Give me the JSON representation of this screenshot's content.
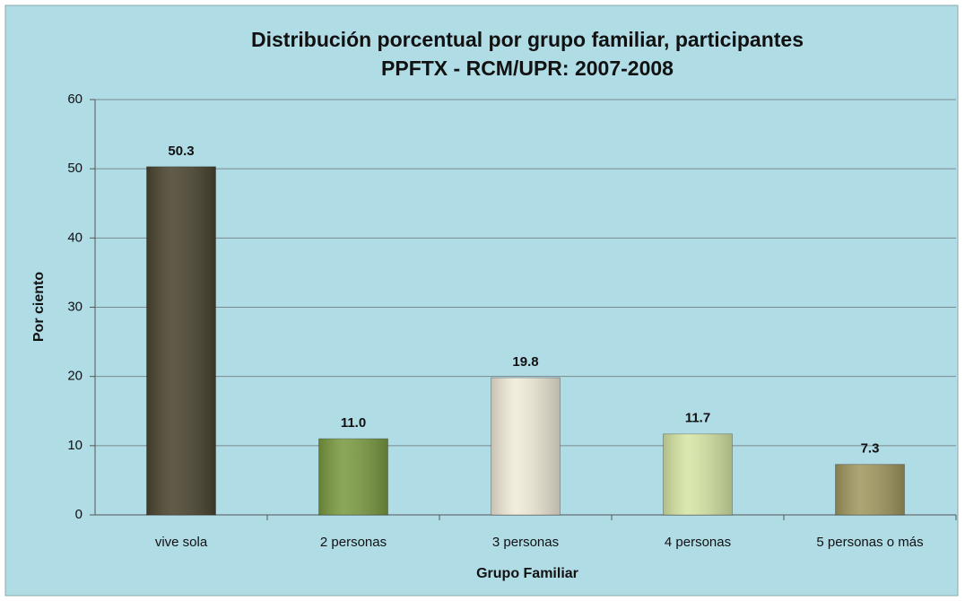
{
  "chart_data": {
    "type": "bar",
    "title": "Distribución porcentual por grupo familiar, participantes",
    "subtitle": "PPFTX - RCM/UPR: 2007-2008",
    "x_label": "Grupo Familiar",
    "y_label": "Por ciento",
    "categories": [
      "vive sola",
      "2 personas",
      "3 personas",
      "4 personas",
      "5 personas o más"
    ],
    "values": [
      50.3,
      11.0,
      19.8,
      11.7,
      7.3
    ],
    "value_labels": [
      "50.3",
      "11.0",
      "19.8",
      "11.7",
      "7.3"
    ],
    "colors": [
      "#4b4530",
      "#7b9b41",
      "#f1ebd8",
      "#d6e6a6",
      "#a19860"
    ],
    "ylim": [
      0,
      60
    ],
    "yticks": [
      0,
      10,
      20,
      30,
      40,
      50,
      60
    ],
    "grid": true
  }
}
